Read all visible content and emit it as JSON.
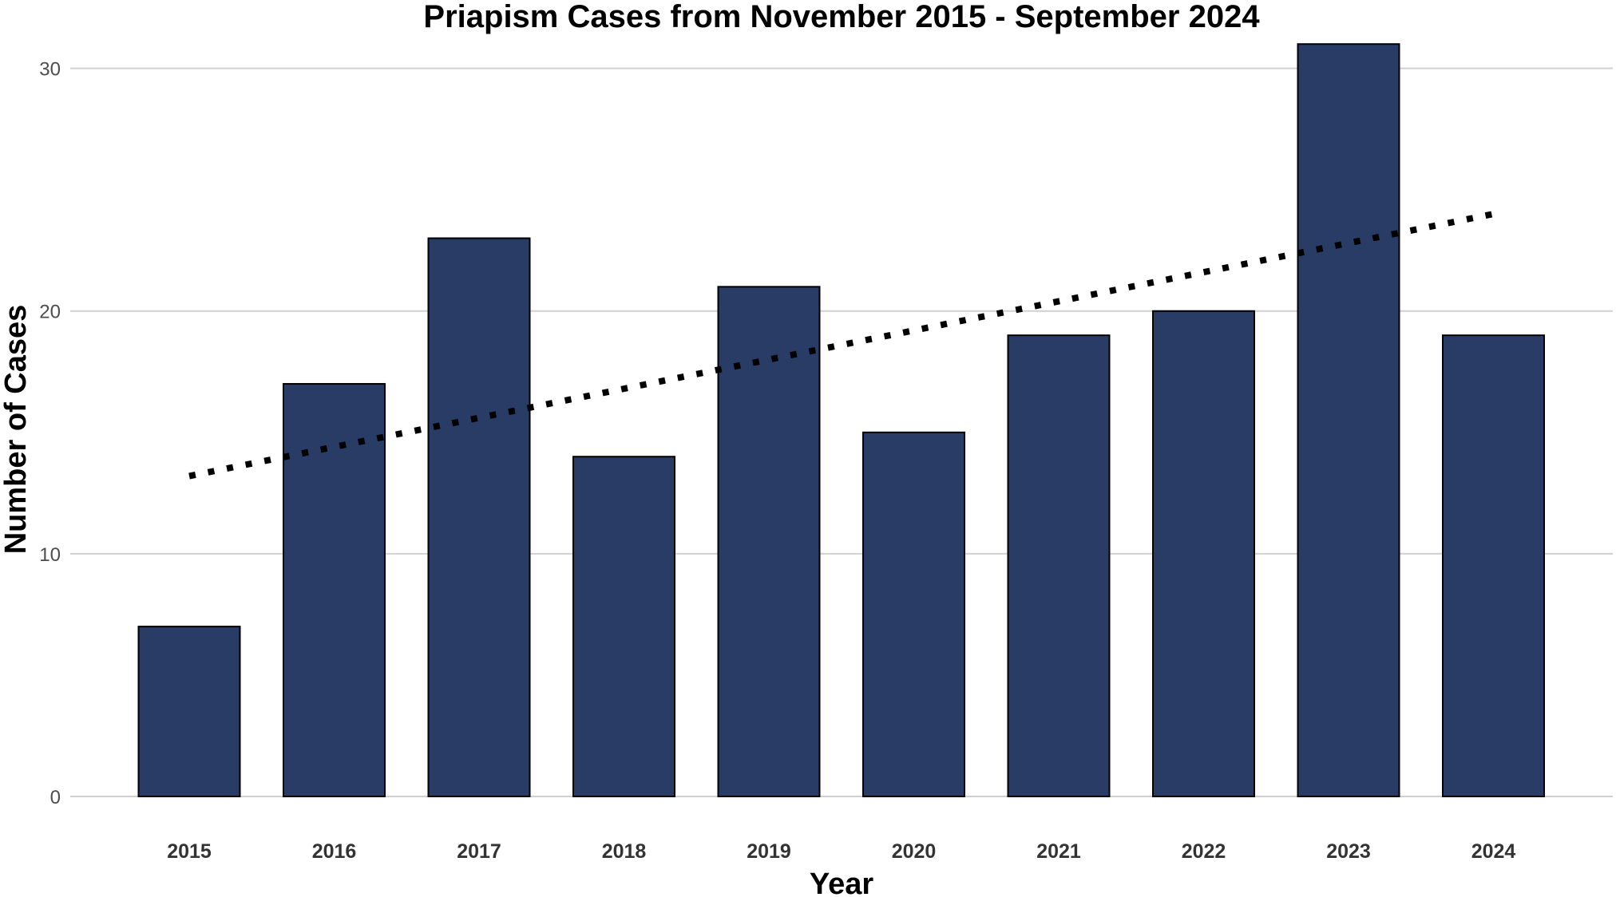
{
  "chart_data": {
    "type": "bar",
    "title": "Priapism Cases from November 2015 - September 2024",
    "xlabel": "Year",
    "ylabel": "Number of Cases",
    "categories": [
      "2015",
      "2016",
      "2017",
      "2018",
      "2019",
      "2020",
      "2021",
      "2022",
      "2023",
      "2024"
    ],
    "values": [
      7,
      17,
      23,
      14,
      21,
      15,
      19,
      20,
      31,
      19
    ],
    "ylim": [
      0,
      31.5
    ],
    "yticks": [
      0,
      10,
      20,
      30
    ],
    "grid": "horizontal",
    "legend": "none",
    "bar_color": "#283c66",
    "trendline": {
      "style": "dotted",
      "color": "#000000",
      "start": {
        "x": "2015",
        "y": 13.2
      },
      "end": {
        "x": "2024",
        "y": 24
      }
    }
  }
}
